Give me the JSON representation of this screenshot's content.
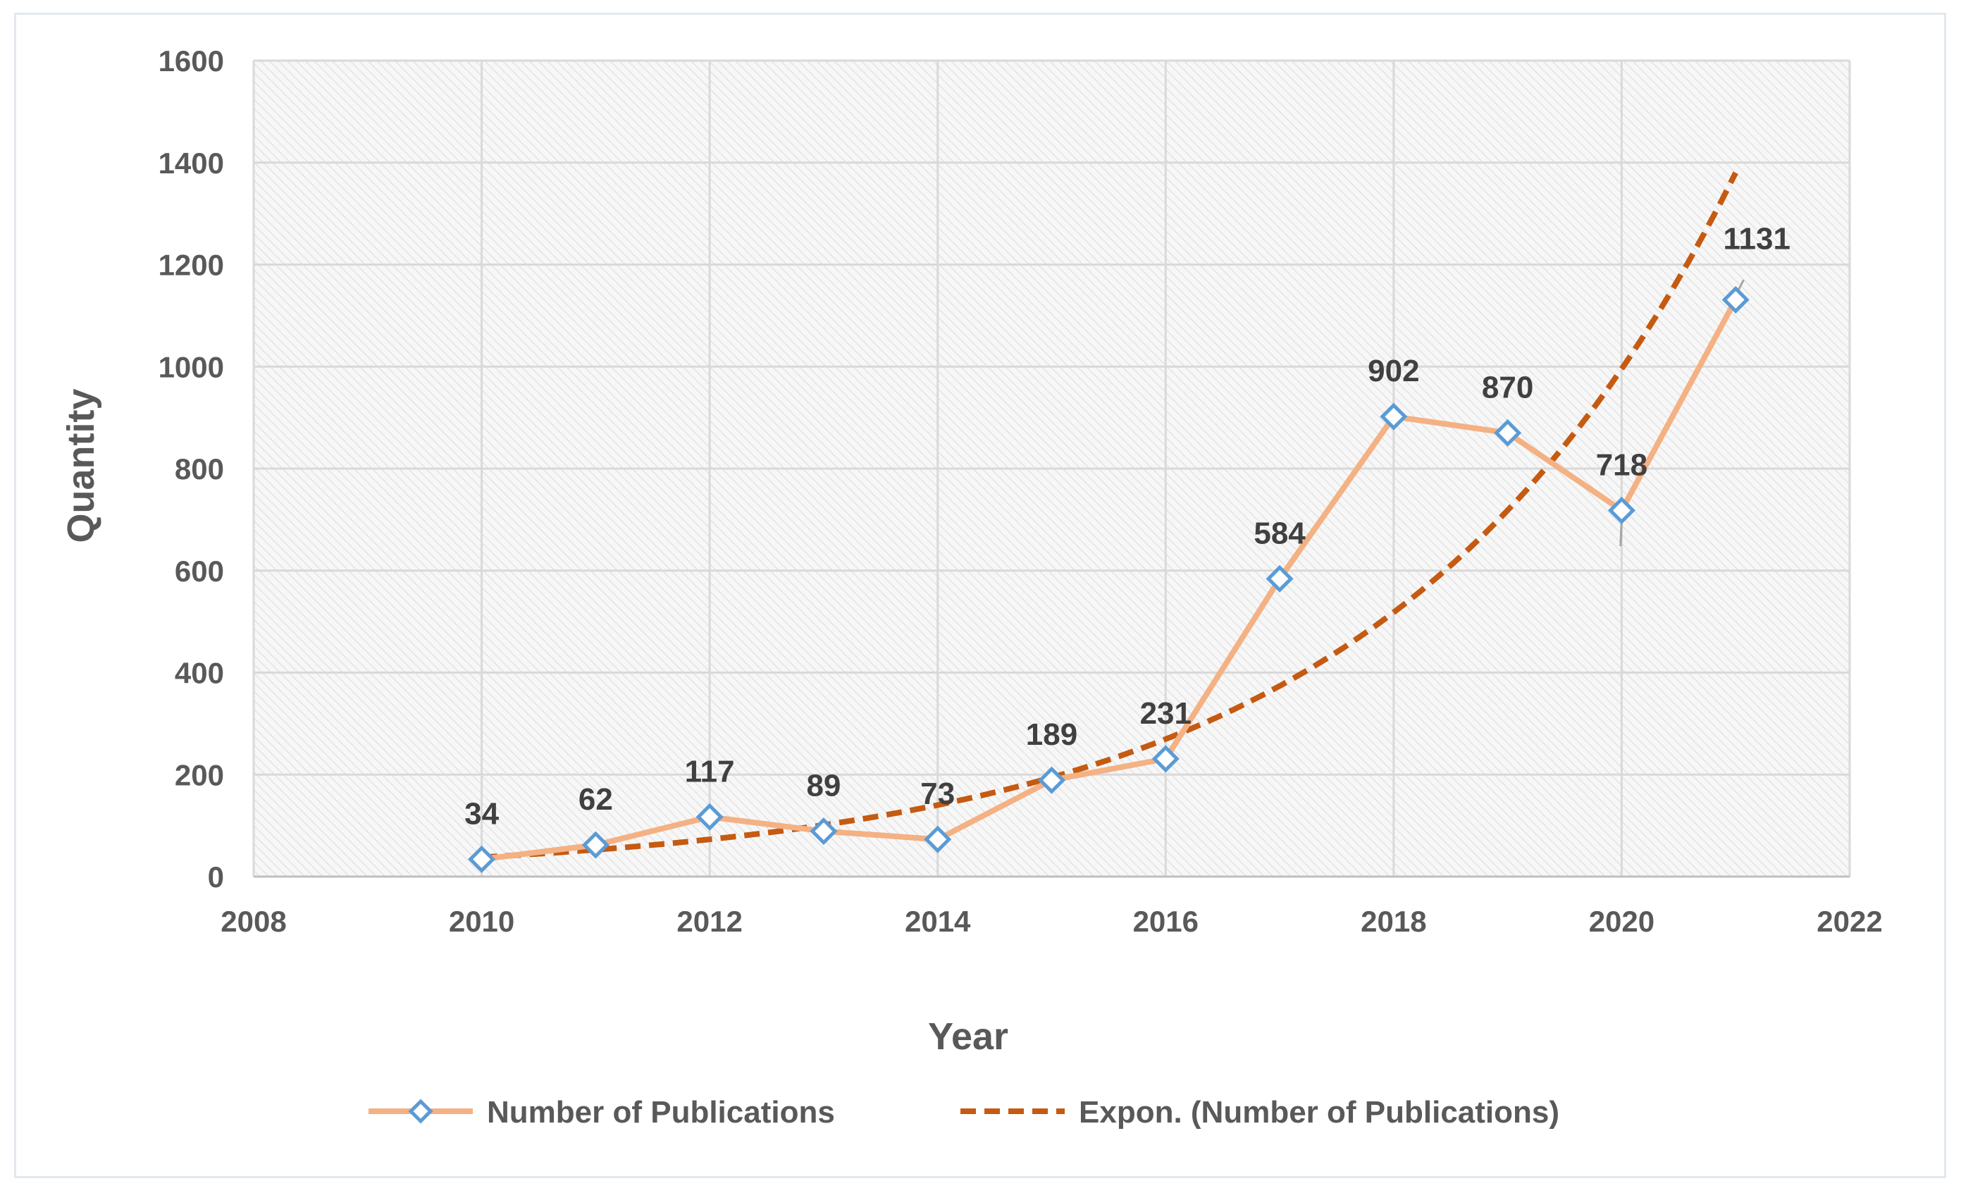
{
  "chart_data": {
    "type": "line",
    "title": "",
    "xlabel": "Year",
    "ylabel": "Quantity",
    "xlim": [
      2008,
      2022
    ],
    "ylim": [
      0,
      1600
    ],
    "x_ticks": [
      2008,
      2010,
      2012,
      2014,
      2016,
      2018,
      2020,
      2022
    ],
    "y_ticks": [
      0,
      200,
      400,
      600,
      800,
      1000,
      1200,
      1400,
      1600
    ],
    "grid": true,
    "legend_position": "bottom",
    "series": [
      {
        "name": "Number of Publications",
        "color": "#f4b183",
        "marker_color": "#5b9bd5",
        "marker": "diamond",
        "x": [
          2010,
          2011,
          2012,
          2013,
          2014,
          2015,
          2016,
          2017,
          2018,
          2019,
          2020,
          2021
        ],
        "values": [
          34,
          62,
          117,
          89,
          73,
          189,
          231,
          584,
          902,
          870,
          718,
          1131
        ]
      },
      {
        "name": "Expon. (Number of Publications)",
        "color": "#c55a11",
        "style": "dashed",
        "trendline": "exponential",
        "x_range": [
          2010,
          2021
        ],
        "start_value": 38,
        "end_value": 1380
      }
    ]
  }
}
